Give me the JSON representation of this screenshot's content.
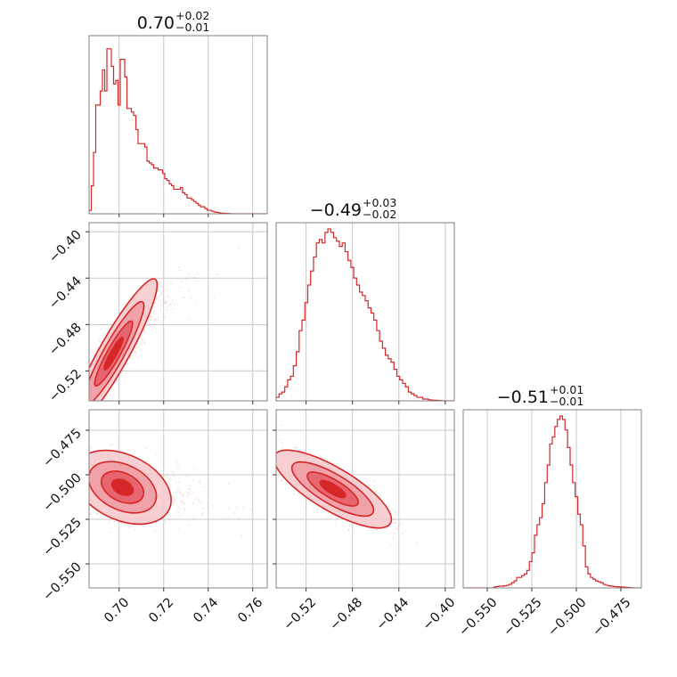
{
  "chart_data": {
    "type": "corner",
    "color": "#d62728",
    "fill_colors": [
      "#f7c8cb",
      "#ef9aa1",
      "#e55a64",
      "#d62728"
    ],
    "parameters": [
      {
        "median": "0.70",
        "plus": "+0.02",
        "minus": "−0.01",
        "range": [
          0.6865,
          0.7665
        ],
        "ticks": [
          0.7,
          0.72,
          0.74,
          0.76
        ],
        "tick_labels": [
          "0.70",
          "0.72",
          "0.74",
          "0.76"
        ]
      },
      {
        "median": "−0.49",
        "plus": "+0.03",
        "minus": "−0.02",
        "range": [
          -0.5458,
          -0.3922
        ],
        "ticks": [
          -0.52,
          -0.48,
          -0.44,
          -0.4
        ],
        "tick_labels": [
          "−0.52",
          "−0.48",
          "−0.44",
          "−0.40"
        ]
      },
      {
        "median": "−0.51",
        "plus": "+0.01",
        "minus": "−0.01",
        "range": [
          -0.5635,
          -0.4635
        ],
        "ticks": [
          -0.55,
          -0.525,
          -0.5,
          -0.475
        ],
        "tick_labels": [
          "−0.550",
          "−0.525",
          "−0.500",
          "−0.475"
        ]
      }
    ],
    "histograms": [
      {
        "x0": 0.6865,
        "x1": 0.7665,
        "counts": [
          0.02,
          0.16,
          0.35,
          0.62,
          0.62,
          0.7,
          0.82,
          0.7,
          0.94,
          0.94,
          0.84,
          0.74,
          0.76,
          0.62,
          0.88,
          0.88,
          0.78,
          0.6,
          0.6,
          0.58,
          0.56,
          0.48,
          0.4,
          0.4,
          0.4,
          0.38,
          0.3,
          0.29,
          0.28,
          0.26,
          0.26,
          0.25,
          0.25,
          0.23,
          0.2,
          0.19,
          0.17,
          0.16,
          0.14,
          0.14,
          0.14,
          0.15,
          0.12,
          0.11,
          0.09,
          0.09,
          0.08,
          0.07,
          0.06,
          0.05,
          0.04,
          0.04,
          0.03,
          0.02,
          0.02,
          0.015,
          0.01,
          0.008,
          0.006,
          0.004,
          0.003,
          0.002,
          0.002,
          0.001,
          0.0,
          0.0,
          0.0,
          0.0,
          0.0,
          0.0,
          0.0,
          0.0,
          0.0,
          0.0,
          0.0,
          0.0,
          0.0,
          0.0,
          0.0,
          0.0
        ]
      },
      {
        "x0": -0.5458,
        "x1": -0.3922,
        "counts": [
          0.02,
          0.04,
          0.05,
          0.08,
          0.12,
          0.14,
          0.2,
          0.28,
          0.4,
          0.46,
          0.56,
          0.66,
          0.74,
          0.82,
          0.9,
          0.92,
          0.9,
          0.96,
          0.98,
          0.96,
          0.93,
          0.91,
          0.88,
          0.9,
          0.85,
          0.8,
          0.76,
          0.7,
          0.66,
          0.62,
          0.6,
          0.57,
          0.53,
          0.5,
          0.46,
          0.4,
          0.34,
          0.3,
          0.26,
          0.24,
          0.22,
          0.18,
          0.14,
          0.12,
          0.1,
          0.08,
          0.05,
          0.04,
          0.03,
          0.02,
          0.02,
          0.01,
          0.01,
          0.006,
          0.004,
          0.003,
          0.002,
          0.001,
          0.0,
          0.0,
          0.0,
          0.0
        ]
      },
      {
        "x0": -0.5635,
        "x1": -0.4635,
        "counts": [
          0.0,
          0.0,
          0.0,
          0.0,
          0.0,
          0.0,
          0.0,
          0.0,
          0.0,
          0.0,
          0.0,
          0.0,
          0.005,
          0.008,
          0.01,
          0.01,
          0.012,
          0.015,
          0.02,
          0.03,
          0.04,
          0.06,
          0.06,
          0.07,
          0.08,
          0.1,
          0.15,
          0.2,
          0.3,
          0.36,
          0.4,
          0.48,
          0.6,
          0.7,
          0.82,
          0.86,
          0.92,
          0.96,
          0.98,
          0.96,
          0.9,
          0.8,
          0.7,
          0.6,
          0.52,
          0.42,
          0.36,
          0.24,
          0.12,
          0.08,
          0.06,
          0.05,
          0.04,
          0.035,
          0.03,
          0.02,
          0.015,
          0.012,
          0.01,
          0.008,
          0.007,
          0.006,
          0.005,
          0.004,
          0.003,
          0.002,
          0.001,
          0.0,
          0.0,
          0.0
        ]
      }
    ],
    "pairs": [
      {
        "x_param": 0,
        "y_param": 1,
        "center": [
          0.6975,
          -0.505
        ],
        "sigma": [
          0.0085,
          0.028
        ],
        "rho": 0.92
      },
      {
        "x_param": 0,
        "y_param": 2,
        "center": [
          0.7015,
          -0.507
        ],
        "sigma": [
          0.0095,
          0.009
        ],
        "rho": -0.35
      },
      {
        "x_param": 1,
        "y_param": 2,
        "center": [
          -0.497,
          -0.508
        ],
        "sigma": [
          0.022,
          0.0095
        ],
        "rho": -0.78
      }
    ],
    "contour_levels": [
      0.5,
      1.0,
      1.6,
      2.3
    ],
    "grid": true
  }
}
